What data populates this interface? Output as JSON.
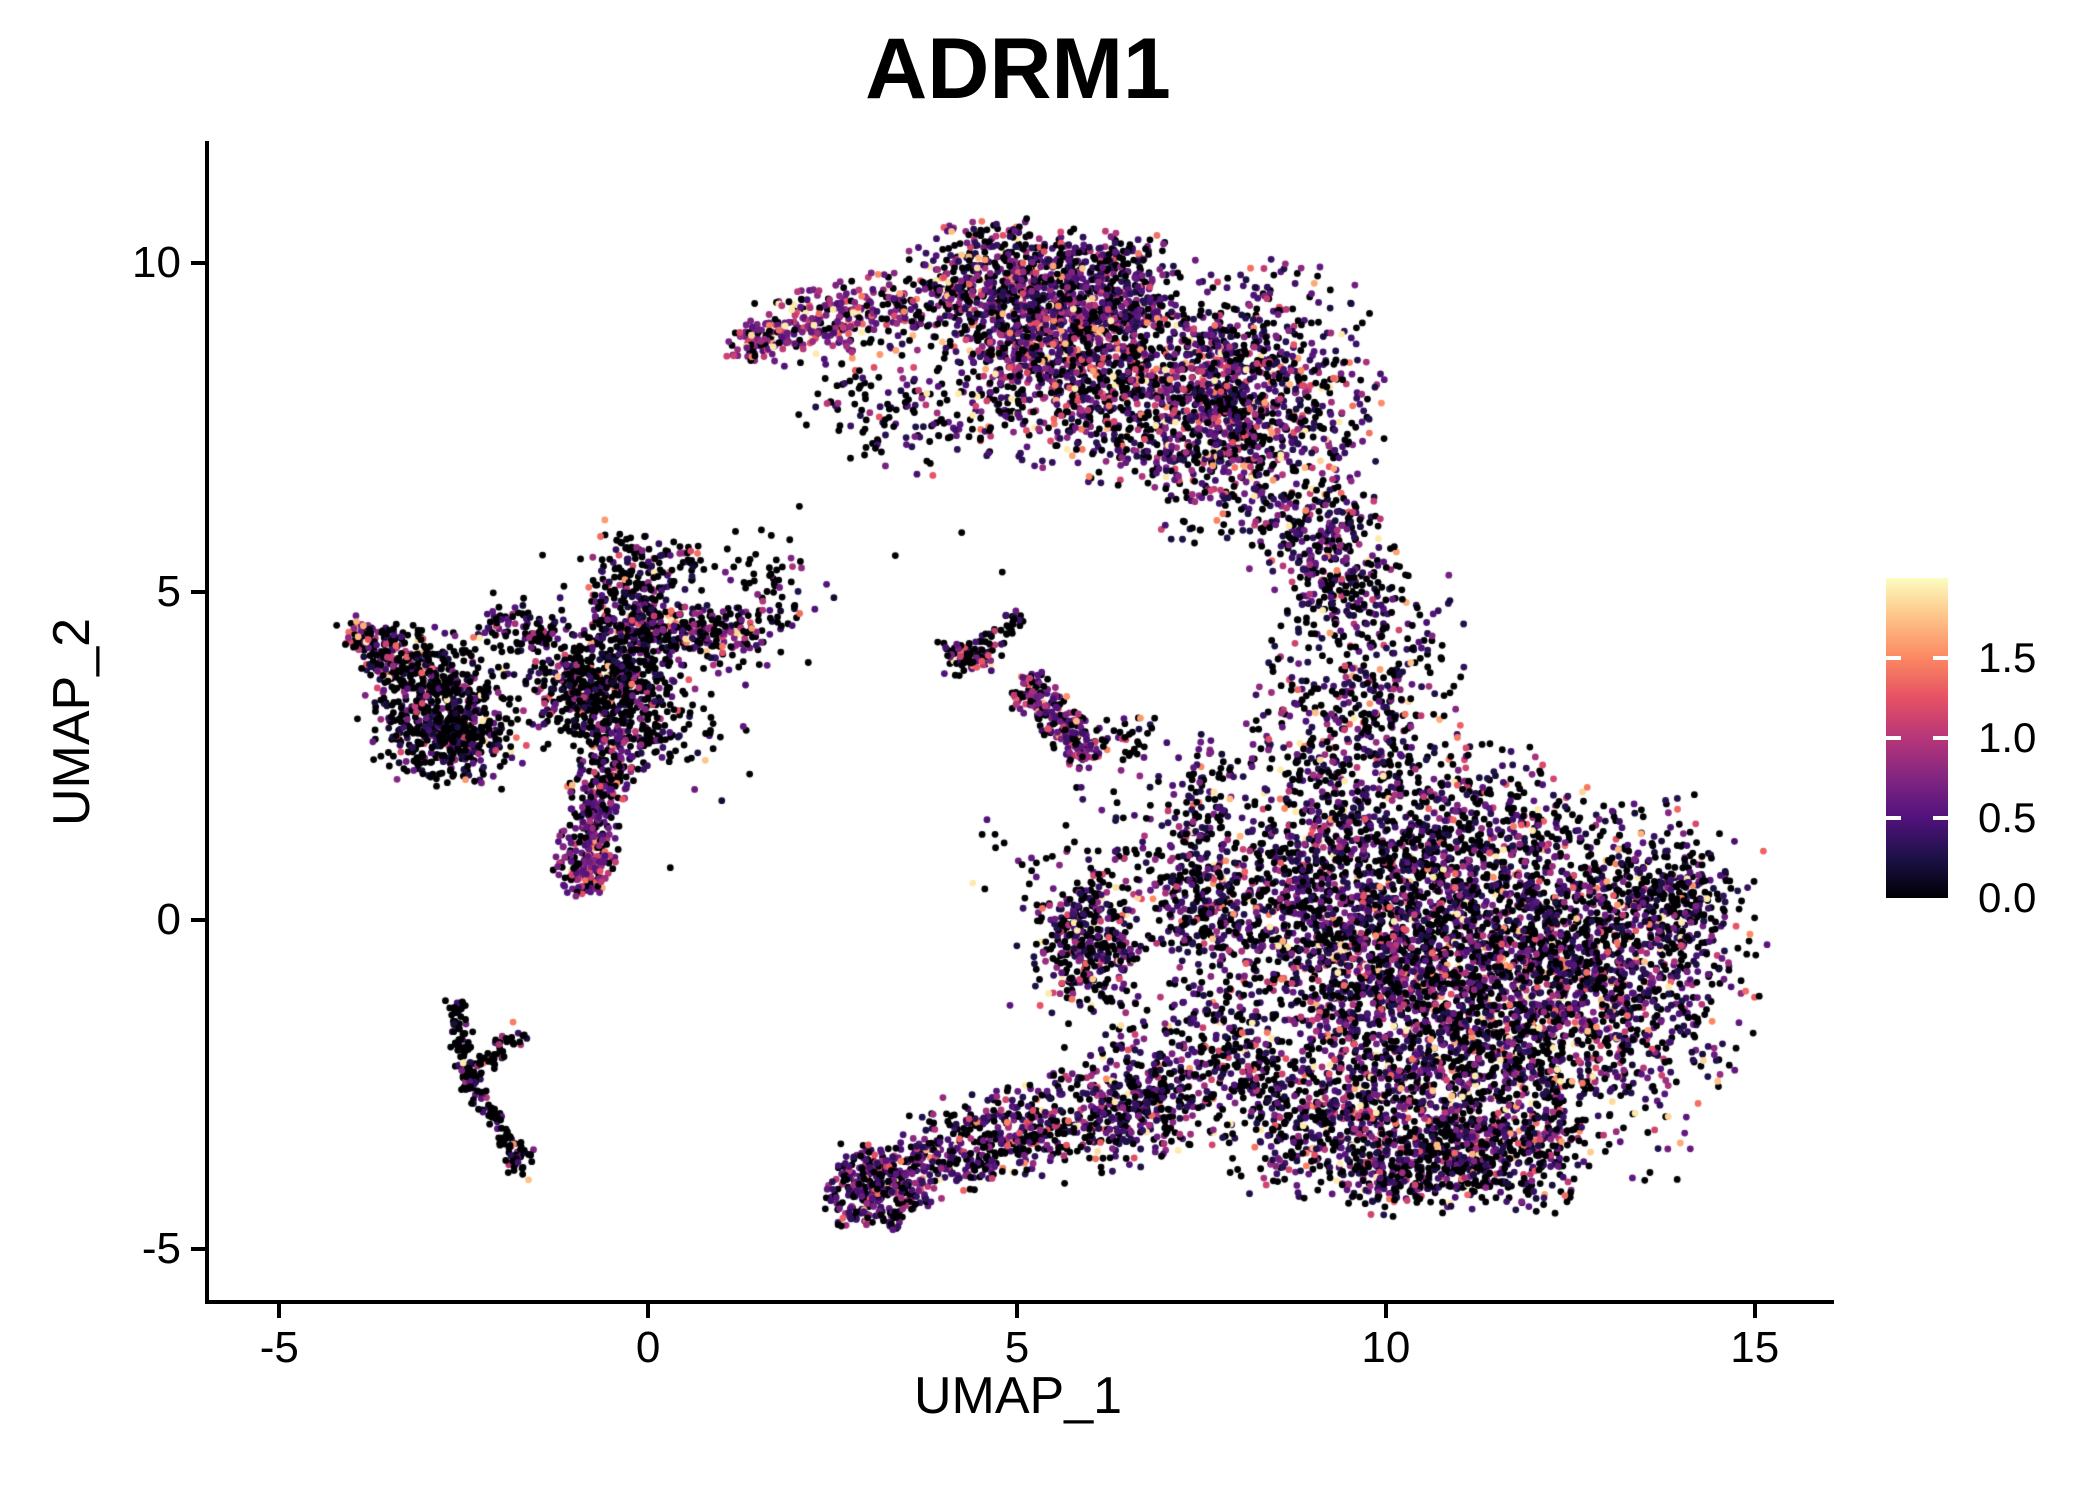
{
  "figure": {
    "background": "#FFFFFF",
    "axis_color": "#000000",
    "text_color": "#000000"
  },
  "chart_data": {
    "type": "scatter",
    "title": "ADRM1",
    "xlabel": "UMAP_1",
    "ylabel": "UMAP_2",
    "x_ticks": {
      "values": [
        -5,
        0,
        5,
        10,
        15
      ],
      "labels": [
        "-5",
        "0",
        "5",
        "10",
        "15"
      ]
    },
    "y_ticks": {
      "values": [
        -5,
        0,
        5,
        10
      ],
      "labels": [
        "-5",
        "0",
        "5",
        "10"
      ]
    },
    "xlim": [
      -5.98,
      16.02
    ],
    "ylim": [
      -5.81,
      11.83
    ],
    "grid": false,
    "legend_position": "right",
    "point_radius_px": 3.4,
    "n_points_approx": 16600,
    "colorbar": {
      "limits": [
        0,
        2
      ],
      "breaks": [
        0,
        0.5,
        1,
        1.5
      ],
      "labels": [
        "0.0",
        "0.5",
        "1.0",
        "1.5"
      ],
      "palette_name": "magma",
      "palette_stops": [
        "#000004",
        "#1D1147",
        "#51127C",
        "#822681",
        "#B63679",
        "#E65164",
        "#FB8861",
        "#FEC287",
        "#FCFDBF"
      ],
      "tick_color": "#FFFFFF"
    },
    "seed": 42,
    "clusters": [
      {
        "name": "top-crescent-tail",
        "shape": "strip",
        "x1": 1.6,
        "y1": 8.9,
        "x2": 3.6,
        "y2": 9.45,
        "w": 0.28,
        "n": 280,
        "z": 0.25,
        "v0": 0.45,
        "vs": 0.45
      },
      {
        "name": "top-crescent-tip",
        "shape": "blob",
        "cx": 1.45,
        "cy": 8.8,
        "sx": 0.2,
        "sy": 0.15,
        "n": 80,
        "z": 0.2,
        "v0": 0.6,
        "vs": 0.4
      },
      {
        "name": "top-upper-band",
        "shape": "strip",
        "x1": 3.8,
        "y1": 9.6,
        "x2": 6.8,
        "y2": 9.25,
        "w": 0.55,
        "n": 1000,
        "z": 0.33,
        "v0": 0.25,
        "vs": 0.5
      },
      {
        "name": "top-mid-band",
        "shape": "strip",
        "x1": 4.6,
        "y1": 8.6,
        "x2": 8.2,
        "y2": 7.6,
        "w": 0.75,
        "n": 1300,
        "z": 0.35,
        "v0": 0.25,
        "vs": 0.5
      },
      {
        "name": "top-right-lobe",
        "shape": "blob",
        "cx": 8.25,
        "cy": 7.9,
        "sx": 0.8,
        "sy": 1.0,
        "n": 850,
        "z": 0.38,
        "v0": 0.2,
        "vs": 0.5
      },
      {
        "name": "top-edge-scatter",
        "shape": "strip",
        "x1": 4.4,
        "y1": 10.15,
        "x2": 7.0,
        "y2": 9.9,
        "w": 0.3,
        "n": 200,
        "z": 0.45,
        "v0": 0.2,
        "vs": 0.5
      },
      {
        "name": "top-left-descenders",
        "shape": "strip",
        "x1": 2.6,
        "y1": 8.4,
        "x2": 4.0,
        "y2": 7.3,
        "w": 0.5,
        "n": 140,
        "z": 0.5,
        "v0": 0.2,
        "vs": 0.5
      },
      {
        "name": "neck",
        "shape": "strip",
        "x1": 8.9,
        "y1": 6.4,
        "x2": 9.55,
        "y2": 4.8,
        "w": 0.45,
        "n": 300,
        "z": 0.45,
        "v0": 0.2,
        "vs": 0.45
      },
      {
        "name": "br-core",
        "shape": "blob",
        "cx": 10.9,
        "cy": -1.0,
        "sx": 1.6,
        "sy": 1.35,
        "n": 3300,
        "z": 0.42,
        "v0": 0.2,
        "vs": 0.5
      },
      {
        "name": "br-upper-mid",
        "shape": "blob",
        "cx": 9.3,
        "cy": 0.6,
        "sx": 1.0,
        "sy": 1.0,
        "n": 850,
        "z": 0.42,
        "v0": 0.2,
        "vs": 0.5
      },
      {
        "name": "br-top-arm",
        "shape": "blob",
        "cx": 9.55,
        "cy": 3.1,
        "sx": 0.7,
        "sy": 0.95,
        "n": 450,
        "z": 0.45,
        "v0": 0.18,
        "vs": 0.48
      },
      {
        "name": "br-top-arm-tip",
        "shape": "blob",
        "cx": 9.9,
        "cy": 4.6,
        "sx": 0.45,
        "sy": 0.4,
        "n": 80,
        "z": 0.5,
        "v0": 0.18,
        "vs": 0.45
      },
      {
        "name": "br-right-bulge",
        "shape": "blob",
        "cx": 13.1,
        "cy": -0.4,
        "sx": 0.95,
        "sy": 1.05,
        "n": 800,
        "z": 0.48,
        "v0": 0.16,
        "vs": 0.48
      },
      {
        "name": "br-right-tip",
        "shape": "blob",
        "cx": 14.05,
        "cy": 0.25,
        "sx": 0.4,
        "sy": 0.5,
        "n": 140,
        "z": 0.52,
        "v0": 0.15,
        "vs": 0.45
      },
      {
        "name": "br-bottom-band",
        "shape": "strip",
        "x1": 8.2,
        "y1": -3.1,
        "x2": 12.6,
        "y2": -3.4,
        "w": 0.55,
        "n": 800,
        "z": 0.45,
        "v0": 0.2,
        "vs": 0.48
      },
      {
        "name": "br-bottom-edge",
        "shape": "strip",
        "x1": 9.6,
        "y1": -3.95,
        "x2": 11.6,
        "y2": -3.6,
        "w": 0.35,
        "n": 280,
        "z": 0.48,
        "v0": 0.18,
        "vs": 0.45
      },
      {
        "name": "br-left-clump",
        "shape": "blob",
        "cx": 5.95,
        "cy": -0.35,
        "sx": 0.32,
        "sy": 0.5,
        "n": 300,
        "z": 0.46,
        "v0": 0.2,
        "vs": 0.48
      },
      {
        "name": "br-left-scatter",
        "shape": "blob",
        "cx": 7.1,
        "cy": 0.3,
        "sx": 0.7,
        "sy": 1.0,
        "n": 300,
        "z": 0.5,
        "v0": 0.18,
        "vs": 0.48
      },
      {
        "name": "br-sw-strip",
        "shape": "strip",
        "x1": 6.1,
        "y1": -2.9,
        "x2": 8.4,
        "y2": -1.9,
        "w": 0.55,
        "n": 350,
        "z": 0.45,
        "v0": 0.2,
        "vs": 0.48
      },
      {
        "name": "br-vertical-strand",
        "shape": "strip",
        "x1": 7.35,
        "y1": -0.2,
        "x2": 7.6,
        "y2": 2.7,
        "w": 0.22,
        "n": 130,
        "z": 0.5,
        "v0": 0.18,
        "vs": 0.45
      },
      {
        "name": "br-west-sparse",
        "shape": "strip",
        "x1": 4.9,
        "y1": 1.6,
        "x2": 5.85,
        "y2": -1.4,
        "w": 0.5,
        "n": 55,
        "z": 0.55,
        "v0": 0.15,
        "vs": 0.45
      },
      {
        "name": "br-ne-edge",
        "shape": "blob",
        "cx": 11.35,
        "cy": 1.6,
        "sx": 0.8,
        "sy": 0.6,
        "n": 240,
        "z": 0.48,
        "v0": 0.18,
        "vs": 0.45
      },
      {
        "name": "star-core",
        "shape": "blob",
        "cx": -0.6,
        "cy": 3.6,
        "sx": 0.5,
        "sy": 0.45,
        "n": 500,
        "z": 0.6,
        "v0": 0.15,
        "vs": 0.5
      },
      {
        "name": "star-arm-up",
        "shape": "strip",
        "x1": -0.55,
        "y1": 4.1,
        "x2": -0.25,
        "y2": 5.9,
        "w": 0.22,
        "n": 140,
        "z": 0.55,
        "v0": 0.15,
        "vs": 0.5
      },
      {
        "name": "star-arm-upright",
        "shape": "strip",
        "x1": -0.35,
        "y1": 4.3,
        "x2": 0.45,
        "y2": 5.75,
        "w": 0.2,
        "n": 110,
        "z": 0.5,
        "v0": 0.15,
        "vs": 0.5
      },
      {
        "name": "star-arm-right",
        "shape": "strip",
        "x1": -0.2,
        "y1": 4.45,
        "x2": 0.95,
        "y2": 4.35,
        "w": 0.22,
        "n": 160,
        "z": 0.5,
        "v0": 0.18,
        "vs": 0.5
      },
      {
        "name": "star-arm-right-tip",
        "shape": "blob",
        "cx": 1.05,
        "cy": 4.35,
        "sx": 0.22,
        "sy": 0.18,
        "n": 55,
        "z": 0.3,
        "v0": 0.5,
        "vs": 0.4
      },
      {
        "name": "star-strand-down",
        "shape": "strip",
        "x1": -0.45,
        "y1": 2.85,
        "x2": -0.85,
        "y2": 1.05,
        "w": 0.22,
        "n": 270,
        "z": 0.3,
        "v0": 0.45,
        "vs": 0.3
      },
      {
        "name": "star-strand-blob",
        "shape": "blob",
        "cx": -0.85,
        "cy": 0.8,
        "sx": 0.22,
        "sy": 0.2,
        "n": 120,
        "z": 0.25,
        "v0": 0.5,
        "vs": 0.3
      },
      {
        "name": "star-below-scatter",
        "shape": "blob",
        "cx": 0.0,
        "cy": 2.9,
        "sx": 0.45,
        "sy": 0.5,
        "n": 110,
        "z": 0.75,
        "v0": 0.15,
        "vs": 0.5
      },
      {
        "name": "star-right-scatter",
        "shape": "blob",
        "cx": 1.6,
        "cy": 4.95,
        "sx": 0.5,
        "sy": 0.5,
        "n": 95,
        "z": 0.7,
        "v0": 0.15,
        "vs": 0.5
      },
      {
        "name": "star-halo",
        "shape": "blob",
        "cx": -0.4,
        "cy": 3.7,
        "sx": 1.0,
        "sy": 0.95,
        "n": 180,
        "z": 0.65,
        "v0": 0.15,
        "vs": 0.5
      },
      {
        "name": "bridge-left",
        "shape": "strip",
        "x1": -2.2,
        "y1": 4.5,
        "x2": -1.3,
        "y2": 4.4,
        "w": 0.18,
        "n": 75,
        "z": 0.6,
        "v0": 0.2,
        "vs": 0.5
      },
      {
        "name": "farleft-main",
        "shape": "blob",
        "cx": -2.85,
        "cy": 3.3,
        "sx": 0.5,
        "sy": 0.55,
        "n": 480,
        "z": 0.68,
        "v0": 0.15,
        "vs": 0.55
      },
      {
        "name": "farleft-tip",
        "shape": "blob",
        "cx": -3.9,
        "cy": 4.35,
        "sx": 0.18,
        "sy": 0.18,
        "n": 50,
        "z": 0.4,
        "v0": 0.5,
        "vs": 0.5
      },
      {
        "name": "farleft-ridge",
        "shape": "strip",
        "x1": -3.8,
        "y1": 4.2,
        "x2": -3.0,
        "y2": 3.85,
        "w": 0.22,
        "n": 130,
        "z": 0.62,
        "v0": 0.18,
        "vs": 0.5
      },
      {
        "name": "farleft-lower",
        "shape": "blob",
        "cx": -2.65,
        "cy": 2.75,
        "sx": 0.4,
        "sy": 0.35,
        "n": 190,
        "z": 0.62,
        "v0": 0.18,
        "vs": 0.5
      },
      {
        "name": "trail-branch-a",
        "shape": "strip",
        "x1": -2.62,
        "y1": -1.2,
        "x2": -2.45,
        "y2": -2.4,
        "w": 0.09,
        "n": 70,
        "z": 0.78,
        "v0": 0.2,
        "vs": 0.4
      },
      {
        "name": "trail-branch-b",
        "shape": "strip",
        "x1": -1.7,
        "y1": -1.65,
        "x2": -2.45,
        "y2": -2.45,
        "w": 0.09,
        "n": 60,
        "z": 0.75,
        "v0": 0.2,
        "vs": 0.4
      },
      {
        "name": "trail-main",
        "shape": "strip",
        "x1": -2.45,
        "y1": -2.45,
        "x2": -1.72,
        "y2": -3.6,
        "w": 0.08,
        "n": 85,
        "z": 0.8,
        "v0": 0.2,
        "vs": 0.4
      },
      {
        "name": "trail-end",
        "shape": "blob",
        "cx": -1.76,
        "cy": -3.66,
        "sx": 0.11,
        "sy": 0.14,
        "n": 32,
        "z": 0.68,
        "v0": 0.25,
        "vs": 0.45
      },
      {
        "name": "bm-blob",
        "shape": "blob",
        "cx": 3.1,
        "cy": -4.05,
        "sx": 0.32,
        "sy": 0.3,
        "n": 360,
        "z": 0.4,
        "v0": 0.3,
        "vs": 0.45
      },
      {
        "name": "bm-trail-1",
        "shape": "strip",
        "x1": 3.4,
        "y1": -3.85,
        "x2": 5.4,
        "y2": -3.25,
        "w": 0.28,
        "n": 310,
        "z": 0.4,
        "v0": 0.28,
        "vs": 0.45
      },
      {
        "name": "bm-trail-2",
        "shape": "strip",
        "x1": 5.4,
        "y1": -3.25,
        "x2": 7.2,
        "y2": -2.55,
        "w": 0.45,
        "n": 310,
        "z": 0.44,
        "v0": 0.22,
        "vs": 0.45
      },
      {
        "name": "bm-upper-fringe",
        "shape": "strip",
        "x1": 3.6,
        "y1": -3.3,
        "x2": 5.6,
        "y2": -2.7,
        "w": 0.25,
        "n": 90,
        "z": 0.5,
        "v0": 0.2,
        "vs": 0.45
      },
      {
        "name": "streak-west-blob",
        "shape": "blob",
        "cx": 4.35,
        "cy": 4.0,
        "sx": 0.22,
        "sy": 0.13,
        "n": 75,
        "z": 0.5,
        "v0": 0.3,
        "vs": 0.5
      },
      {
        "name": "streak-upper-chain",
        "shape": "strip",
        "x1": 4.55,
        "y1": 4.2,
        "x2": 5.05,
        "y2": 4.62,
        "w": 0.1,
        "n": 30,
        "z": 0.6,
        "v0": 0.2,
        "vs": 0.45
      },
      {
        "name": "streak-main",
        "shape": "strip",
        "x1": 5.05,
        "y1": 3.6,
        "x2": 6.05,
        "y2": 2.5,
        "w": 0.17,
        "n": 240,
        "z": 0.32,
        "v0": 0.4,
        "vs": 0.4
      },
      {
        "name": "streak-east-dots",
        "shape": "blob",
        "cx": 6.55,
        "cy": 2.75,
        "sx": 0.25,
        "sy": 0.2,
        "n": 30,
        "z": 0.6,
        "v0": 0.2,
        "vs": 0.45
      }
    ],
    "singles": [
      [
        2.05,
        6.3,
        0
      ],
      [
        3.35,
        5.55,
        0
      ],
      [
        4.25,
        5.9,
        0
      ],
      [
        8.15,
        5.35,
        0.7
      ],
      [
        0.3,
        0.8,
        0
      ],
      [
        4.8,
        5.3,
        0
      ]
    ]
  }
}
